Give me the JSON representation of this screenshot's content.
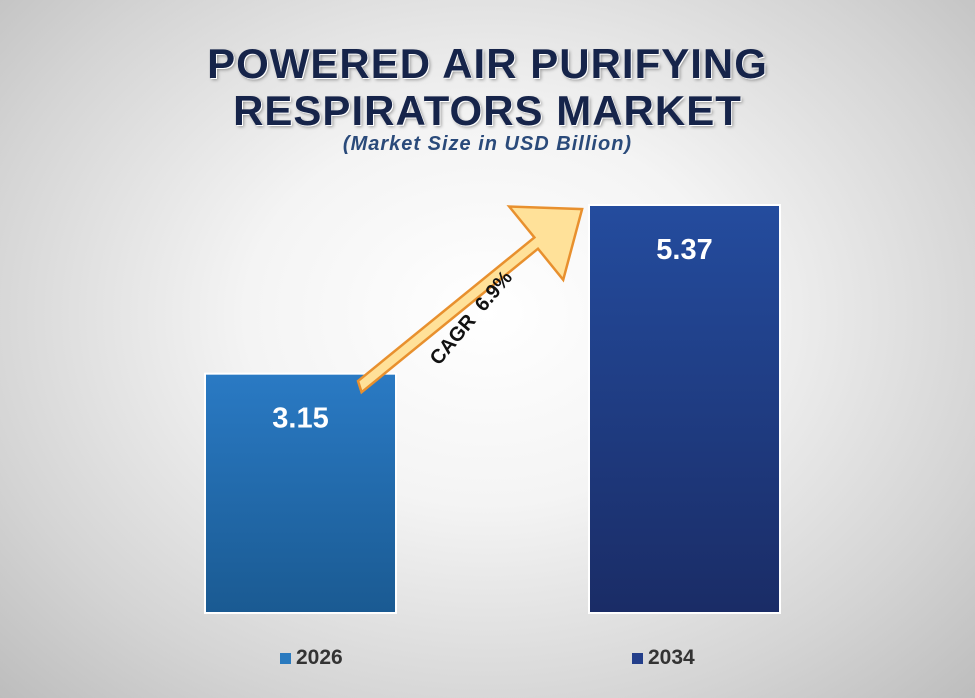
{
  "chart_data": {
    "type": "bar",
    "title_lines": [
      "POWERED AIR PURIFYING",
      "RESPIRATORS MARKET"
    ],
    "subtitle": "(Market Size in USD Billion)",
    "categories": [
      "2026",
      "2034"
    ],
    "values": [
      3.15,
      5.37
    ],
    "value_labels": [
      "3.15",
      "5.37"
    ],
    "colors": [
      "#2a7abf",
      "#233e8a"
    ],
    "annotation": "CAGR  6.9%",
    "legend_position": "bottom",
    "grid": false
  }
}
